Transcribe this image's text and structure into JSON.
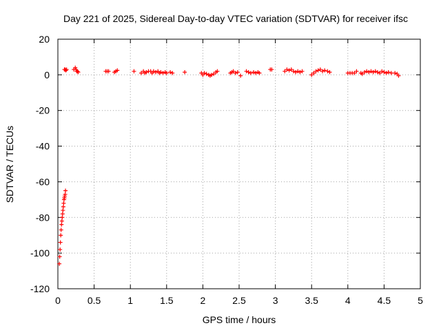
{
  "chart_data": {
    "type": "scatter",
    "title": "Day 221 of 2025, Sidereal Day-to-day VTEC variation (SDTVAR) for receiver ifsc",
    "xlabel": "GPS time / hours",
    "ylabel": "SDTVAR / TECUs",
    "xlim": [
      0,
      5
    ],
    "ylim": [
      -120,
      20
    ],
    "xticks": [
      0,
      0.5,
      1,
      1.5,
      2,
      2.5,
      3,
      3.5,
      4,
      4.5,
      5
    ],
    "yticks": [
      -120,
      -100,
      -80,
      -60,
      -40,
      -20,
      0,
      20
    ],
    "xtick_labels": [
      "0",
      "0.5",
      "1",
      "1.5",
      "2",
      "2.5",
      "3",
      "3.5",
      "4",
      "4.5",
      "5"
    ],
    "ytick_labels": [
      "-120",
      "-100",
      "-80",
      "-60",
      "-40",
      "-20",
      "0",
      "20"
    ],
    "grid": true,
    "legend": "none",
    "marker": "+",
    "color": "#ff0000",
    "series": [
      {
        "x": [
          0.02,
          0.025,
          0.03,
          0.035,
          0.04,
          0.045,
          0.05,
          0.055,
          0.06,
          0.065,
          0.07,
          0.075,
          0.08,
          0.085,
          0.09,
          0.095,
          0.1,
          0.105,
          0.09,
          0.1,
          0.11,
          0.12,
          0.22,
          0.24,
          0.25,
          0.26,
          0.27,
          0.28,
          0.66,
          0.68,
          0.7,
          0.78,
          0.8,
          0.82,
          1.05,
          1.15,
          1.18,
          1.2,
          1.22,
          1.25,
          1.28,
          1.3,
          1.32,
          1.35,
          1.38,
          1.4,
          1.42,
          1.45,
          1.48,
          1.5,
          1.55,
          1.58,
          1.75,
          1.98,
          2.0,
          2.02,
          2.05,
          2.08,
          2.1,
          2.12,
          2.15,
          2.18,
          2.2,
          2.38,
          2.4,
          2.42,
          2.45,
          2.48,
          2.52,
          2.6,
          2.63,
          2.66,
          2.7,
          2.73,
          2.76,
          2.78,
          2.93,
          2.95,
          3.13,
          3.16,
          3.19,
          3.22,
          3.25,
          3.28,
          3.31,
          3.34,
          3.37,
          3.5,
          3.53,
          3.56,
          3.59,
          3.62,
          3.65,
          3.68,
          3.72,
          3.75,
          4.0,
          4.03,
          4.06,
          4.09,
          4.12,
          4.18,
          4.2,
          4.23,
          4.26,
          4.29,
          4.32,
          4.35,
          4.38,
          4.41,
          4.44,
          4.47,
          4.5,
          4.53,
          4.56,
          4.6,
          4.65,
          4.68,
          4.7
        ],
        "y": [
          -106,
          -102,
          -98,
          -94,
          -90,
          -87,
          -84,
          -82,
          -80,
          -78,
          -76,
          -74,
          -72,
          -70,
          -69,
          -68,
          -67,
          -65,
          3,
          3,
          2.5,
          3,
          3,
          4,
          3,
          2,
          2,
          1.5,
          2,
          2,
          2,
          1.5,
          2,
          2.5,
          2,
          1,
          2,
          1,
          1.5,
          2,
          2,
          1,
          2,
          1.5,
          2,
          1,
          1.5,
          1,
          1.5,
          1,
          1.5,
          1,
          1.5,
          1,
          0,
          1,
          0.5,
          0,
          -0.5,
          0,
          0.5,
          1.5,
          2,
          1,
          1.5,
          2,
          1,
          1.5,
          -0.5,
          2,
          1.5,
          1,
          1.5,
          1,
          1.5,
          1,
          3,
          3,
          2,
          3,
          2.5,
          3,
          2,
          1.5,
          2,
          1.5,
          2,
          0,
          1,
          2,
          2.5,
          3,
          2,
          2.5,
          2,
          1.5,
          1,
          1,
          1,
          1,
          2,
          1,
          0.5,
          1.5,
          2,
          1.5,
          2,
          1.5,
          2,
          1.5,
          1,
          2,
          1.5,
          1,
          1.5,
          1,
          1,
          0.5,
          -0.5
        ]
      }
    ]
  }
}
